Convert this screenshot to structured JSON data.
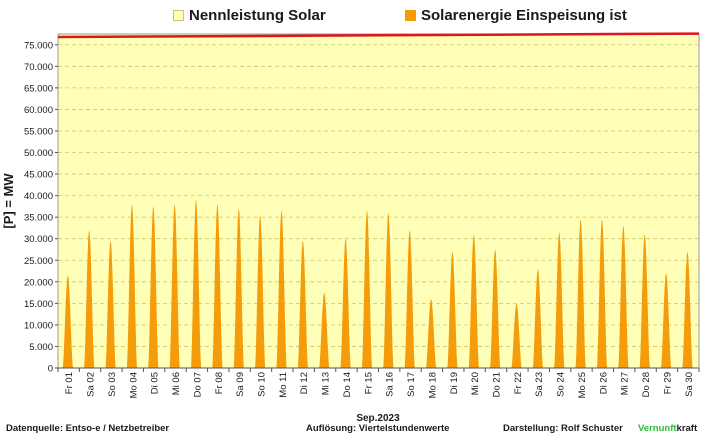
{
  "colors": {
    "plot_background": "#ffffb8",
    "nennleistung": "#ffffb8",
    "einspeisung": "#f59c0b",
    "capacity_line": "#e0141e",
    "gridline": "#c8c86e",
    "brand_green": "#2db83d"
  },
  "legend": {
    "nennleistung_label": "Nennleistung Solar",
    "einspeisung_label": "Solarenergie Einspeisung ist"
  },
  "chart_data": {
    "type": "area",
    "ylabel": "[P] = MW",
    "xlabel": "Sep.2023",
    "ylim": [
      0,
      77500
    ],
    "y_ticks": [
      "0",
      "5.000",
      "10.000",
      "15.000",
      "20.000",
      "25.000",
      "30.000",
      "35.000",
      "40.000",
      "45.000",
      "50.000",
      "55.000",
      "60.000",
      "65.000",
      "70.000",
      "75.000"
    ],
    "y_tick_values": [
      0,
      5000,
      10000,
      15000,
      20000,
      25000,
      30000,
      35000,
      40000,
      45000,
      50000,
      55000,
      60000,
      65000,
      70000,
      75000
    ],
    "grid": true,
    "categories": [
      "Fr 01",
      "Sa 02",
      "So 03",
      "Mo 04",
      "Di 05",
      "Mi 06",
      "Do 07",
      "Fr 08",
      "Sa 09",
      "So 10",
      "Mo 11",
      "Di 12",
      "Mi 13",
      "Do 14",
      "Fr 15",
      "Sa 16",
      "So 17",
      "Mo 18",
      "Di 19",
      "Mi 20",
      "Do 21",
      "Fr 22",
      "Sa 23",
      "So 24",
      "Mo 25",
      "Di 26",
      "Mi 27",
      "Do 28",
      "Fr 29",
      "Sa 30"
    ],
    "series": [
      {
        "name": "Solarenergie Einspeisung ist",
        "daily_peak_mw": [
          21500,
          32000,
          29500,
          38000,
          37500,
          38000,
          39000,
          38000,
          37000,
          35500,
          36500,
          29500,
          17500,
          30000,
          36500,
          36000,
          32000,
          16000,
          27000,
          31000,
          27500,
          15000,
          23000,
          31500,
          34500,
          34500,
          33000,
          31000,
          22000,
          27000
        ]
      },
      {
        "name": "Nennleistung Solar",
        "capacity_start_mw": 76800,
        "capacity_end_mw": 77600
      }
    ]
  },
  "footer": {
    "source": "Datenquelle:  Entso-e  / Netzbetreiber",
    "resolution": "Auflösung: Viertelstundenwerte",
    "author": "Darstellung:  Rolf Schuster",
    "brand_part1": "Vernunft",
    "brand_part2": "kraft"
  }
}
